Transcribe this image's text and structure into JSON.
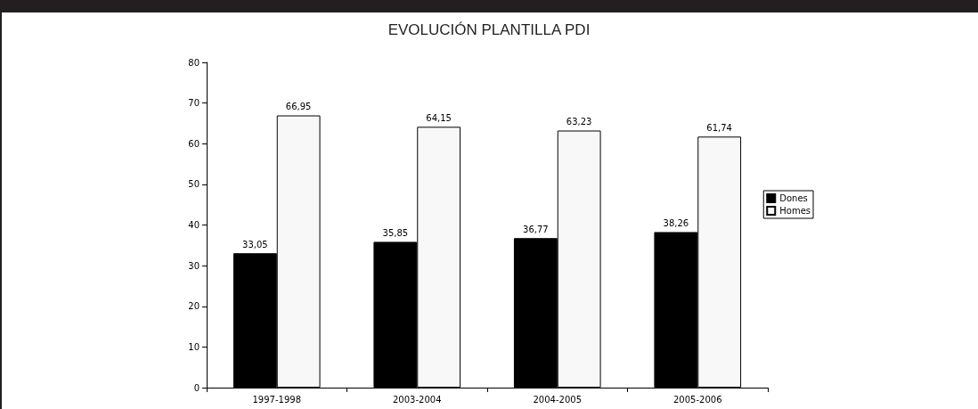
{
  "chart_data": {
    "type": "bar",
    "title": "EVOLUCIÓN PLANTILLA PDI",
    "categories": [
      "1997-1998",
      "2003-2004",
      "2004-2005",
      "2005-2006"
    ],
    "series": [
      {
        "name": "Dones",
        "color": "#000000",
        "values": [
          33.05,
          35.85,
          36.77,
          38.26
        ]
      },
      {
        "name": "Homes",
        "color": "#f8f8f8",
        "values": [
          66.95,
          64.15,
          63.23,
          61.74
        ]
      }
    ],
    "value_labels": [
      [
        "33,05",
        "35,85",
        "36,77",
        "38,26"
      ],
      [
        "66,95",
        "64,15",
        "63,23",
        "61,74"
      ]
    ],
    "ylim": [
      0,
      80
    ],
    "yticks": [
      0,
      10,
      20,
      30,
      40,
      50,
      60,
      70,
      80
    ],
    "grid": false,
    "legend": "right"
  }
}
